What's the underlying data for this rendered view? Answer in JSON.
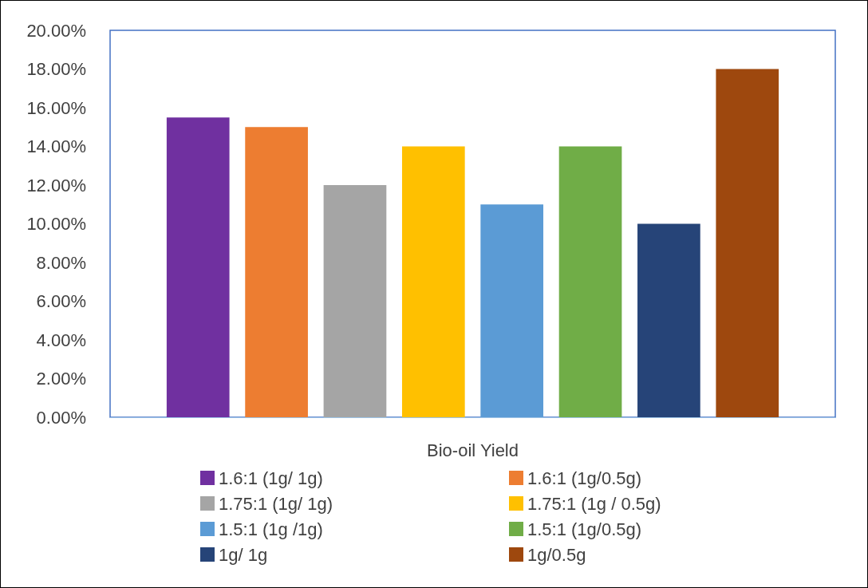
{
  "chart_data": {
    "type": "bar",
    "categories": [
      "Bio-oil Yield"
    ],
    "series": [
      {
        "name": "1.6:1 (1g/ 1g)",
        "color": "#7030a0",
        "values": [
          15.5
        ]
      },
      {
        "name": "1.6:1 (1g/0.5g)",
        "color": "#ed7d31",
        "values": [
          15
        ]
      },
      {
        "name": "1.75:1 (1g/ 1g)",
        "color": "#a5a5a5",
        "values": [
          12
        ]
      },
      {
        "name": "1.75:1 (1g / 0.5g)",
        "color": "#ffc000",
        "values": [
          14
        ]
      },
      {
        "name": "1.5:1 (1g /1g)",
        "color": "#5b9bd5",
        "values": [
          11
        ]
      },
      {
        "name": "1.5:1 (1g/0.5g)",
        "color": "#70ad47",
        "values": [
          14
        ]
      },
      {
        "name": "1g/ 1g",
        "color": "#264478",
        "values": [
          10
        ]
      },
      {
        "name": "1g/0.5g",
        "color": "#9e480e",
        "values": [
          18
        ]
      }
    ],
    "ylim": [
      0,
      20
    ],
    "yticks": [
      {
        "value": 0,
        "label": "0.00%"
      },
      {
        "value": 2,
        "label": "2.00%"
      },
      {
        "value": 4,
        "label": "4.00%"
      },
      {
        "value": 6,
        "label": "6.00%"
      },
      {
        "value": 8,
        "label": "8.00%"
      },
      {
        "value": 10,
        "label": "10.00%"
      },
      {
        "value": 12,
        "label": "12.00%"
      },
      {
        "value": 14,
        "label": "14.00%"
      },
      {
        "value": 16,
        "label": "16.00%"
      },
      {
        "value": 18,
        "label": "18.00%"
      },
      {
        "value": 20,
        "label": "20.00%"
      }
    ],
    "grid": false,
    "legend": "bottom"
  }
}
